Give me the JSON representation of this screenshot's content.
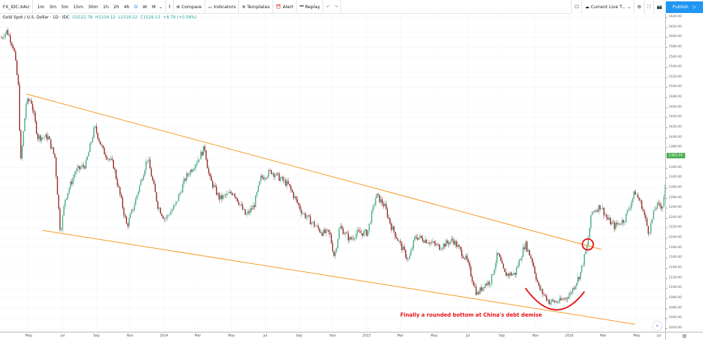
{
  "toolbar": {
    "symbol": "FX_IDC:XAU",
    "intervals": [
      "1m",
      "3m",
      "5m",
      "15m",
      "30m",
      "1h",
      "2h",
      "4h",
      "D",
      "W",
      "M"
    ],
    "active_interval": "D",
    "compare": "Compare",
    "indicators": "Indicators",
    "templates": "Templates",
    "alert": "Alert",
    "replay": "Replay",
    "layout": "Current Live T...",
    "publish": "Publish"
  },
  "legend": {
    "title": "Gold Spot / U.S. Dollar · 1D · IDC",
    "open": "O1522.78",
    "high": "H1534.12",
    "low": "L1519.52",
    "close": "C1529.13",
    "change": "+8.79 (+0.58%)"
  },
  "annotation": "Finally a rounded bottom at China's debt demise",
  "colors": {
    "up": "#3aa57f",
    "down": "#8c1c1c",
    "trend": "#f7931a",
    "marker": "#e8141a",
    "last": "#4caf50"
  },
  "chart_data": {
    "type": "candlestick",
    "price_axis": {
      "min": 1020,
      "max": 1640,
      "step": 20
    },
    "last_price": "1363.55",
    "last_price_value": 1363.55,
    "time_labels": [
      [
        "May",
        0
      ],
      [
        "Jul",
        2
      ],
      [
        "Sep",
        4
      ],
      [
        "Nov",
        6
      ],
      [
        "2014",
        8
      ],
      [
        "Mar",
        10
      ],
      [
        "May",
        12
      ],
      [
        "Jul",
        14
      ],
      [
        "Sep",
        16
      ],
      [
        "Nov",
        18
      ],
      [
        "2015",
        20
      ],
      [
        "Mar",
        22
      ],
      [
        "May",
        24
      ],
      [
        "Jul",
        26
      ],
      [
        "Sep",
        28
      ],
      [
        "Nov",
        30
      ],
      [
        "2016",
        32
      ],
      [
        "Mar",
        34
      ],
      [
        "May",
        36
      ],
      [
        "Jul",
        38
      ]
    ],
    "time_unit": "months since May 2013",
    "price_path": [
      [
        -1.63,
        1599
      ],
      [
        -1.3,
        1613
      ],
      [
        -0.89,
        1579
      ],
      [
        -0.61,
        1497
      ],
      [
        -0.49,
        1346
      ],
      [
        -0.16,
        1469
      ],
      [
        0.12,
        1476
      ],
      [
        0.53,
        1401
      ],
      [
        1.14,
        1401
      ],
      [
        1.54,
        1360
      ],
      [
        1.87,
        1210
      ],
      [
        2.15,
        1278
      ],
      [
        2.76,
        1333
      ],
      [
        3.37,
        1346
      ],
      [
        3.9,
        1421
      ],
      [
        4.39,
        1374
      ],
      [
        5.0,
        1346
      ],
      [
        5.81,
        1223
      ],
      [
        6.22,
        1264
      ],
      [
        7.03,
        1360
      ],
      [
        7.64,
        1264
      ],
      [
        8.05,
        1237
      ],
      [
        8.66,
        1264
      ],
      [
        9.27,
        1319
      ],
      [
        10.08,
        1360
      ],
      [
        10.41,
        1380
      ],
      [
        10.69,
        1319
      ],
      [
        11.3,
        1278
      ],
      [
        12.11,
        1292
      ],
      [
        12.85,
        1244
      ],
      [
        13.33,
        1264
      ],
      [
        13.74,
        1319
      ],
      [
        14.35,
        1333
      ],
      [
        15.37,
        1305
      ],
      [
        16.18,
        1251
      ],
      [
        16.99,
        1223
      ],
      [
        17.4,
        1210
      ],
      [
        17.8,
        1210
      ],
      [
        18.09,
        1162
      ],
      [
        18.41,
        1223
      ],
      [
        19.02,
        1196
      ],
      [
        19.43,
        1210
      ],
      [
        20.04,
        1210
      ],
      [
        20.57,
        1285
      ],
      [
        21.06,
        1264
      ],
      [
        21.46,
        1223
      ],
      [
        22.07,
        1182
      ],
      [
        22.48,
        1155
      ],
      [
        22.89,
        1203
      ],
      [
        23.5,
        1196
      ],
      [
        24.31,
        1182
      ],
      [
        25.12,
        1196
      ],
      [
        25.93,
        1155
      ],
      [
        26.54,
        1087
      ],
      [
        26.95,
        1107
      ],
      [
        27.36,
        1114
      ],
      [
        27.76,
        1169
      ],
      [
        28.17,
        1128
      ],
      [
        28.78,
        1128
      ],
      [
        29.39,
        1189
      ],
      [
        29.8,
        1155
      ],
      [
        30.2,
        1100
      ],
      [
        30.81,
        1073
      ],
      [
        31.42,
        1073
      ],
      [
        32.03,
        1087
      ],
      [
        32.64,
        1128
      ],
      [
        33.05,
        1182
      ],
      [
        33.33,
        1251
      ],
      [
        33.86,
        1264
      ],
      [
        34.27,
        1237
      ],
      [
        34.67,
        1223
      ],
      [
        35.28,
        1237
      ],
      [
        35.89,
        1292
      ],
      [
        36.3,
        1264
      ],
      [
        36.71,
        1210
      ],
      [
        37.11,
        1264
      ],
      [
        37.52,
        1264
      ],
      [
        37.93,
        1360
      ],
      [
        38.33,
        1333
      ],
      [
        38.54,
        1319
      ]
    ],
    "trendlines": [
      {
        "name": "upper",
        "from": [
          -0.16,
          1487
        ],
        "to": [
          33.9,
          1177
        ]
      },
      {
        "name": "lower",
        "from": [
          0.81,
          1215
        ],
        "to": [
          35.9,
          1028
        ]
      }
    ],
    "breakout_marker": [
      33.1,
      1187
    ],
    "rounded_bottom": [
      [
        29.4,
        1100
      ],
      [
        31.2,
        1058
      ],
      [
        32.9,
        1093
      ]
    ]
  }
}
